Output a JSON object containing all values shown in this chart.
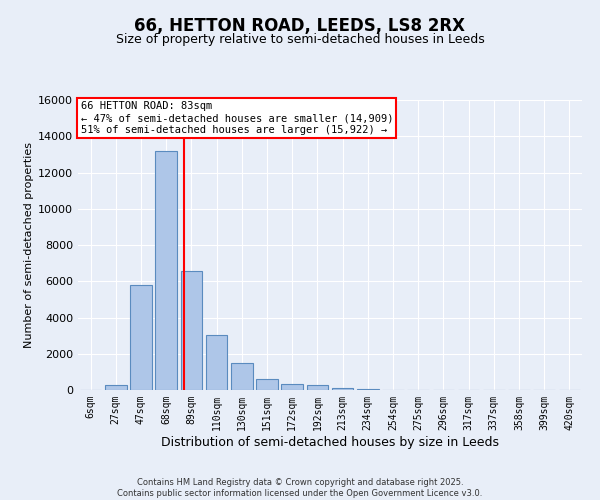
{
  "title": "66, HETTON ROAD, LEEDS, LS8 2RX",
  "subtitle": "Size of property relative to semi-detached houses in Leeds",
  "xlabel": "Distribution of semi-detached houses by size in Leeds",
  "ylabel": "Number of semi-detached properties",
  "footer_line1": "Contains HM Land Registry data © Crown copyright and database right 2025.",
  "footer_line2": "Contains public sector information licensed under the Open Government Licence v3.0.",
  "categories": [
    "6sqm",
    "27sqm",
    "47sqm",
    "68sqm",
    "89sqm",
    "110sqm",
    "130sqm",
    "151sqm",
    "172sqm",
    "192sqm",
    "213sqm",
    "234sqm",
    "254sqm",
    "275sqm",
    "296sqm",
    "317sqm",
    "337sqm",
    "358sqm",
    "399sqm",
    "420sqm"
  ],
  "values": [
    0,
    300,
    5800,
    13200,
    6550,
    3050,
    1500,
    600,
    350,
    260,
    130,
    60,
    0,
    0,
    0,
    0,
    0,
    0,
    0,
    0
  ],
  "bar_color": "#aec6e8",
  "bar_edge_color": "#5a8bbf",
  "property_bin_index": 3,
  "annotation_title": "66 HETTON ROAD: 83sqm",
  "annotation_line1": "← 47% of semi-detached houses are smaller (14,909)",
  "annotation_line2": "51% of semi-detached houses are larger (15,922) →",
  "vline_color": "red",
  "annotation_box_color": "white",
  "annotation_box_edge": "red",
  "ylim": [
    0,
    16000
  ],
  "background_color": "#e8eef8",
  "plot_background": "#e8eef8",
  "grid_color": "white",
  "title_fontsize": 12,
  "subtitle_fontsize": 9,
  "footer_fontsize": 6,
  "ylabel_fontsize": 8,
  "xlabel_fontsize": 9
}
